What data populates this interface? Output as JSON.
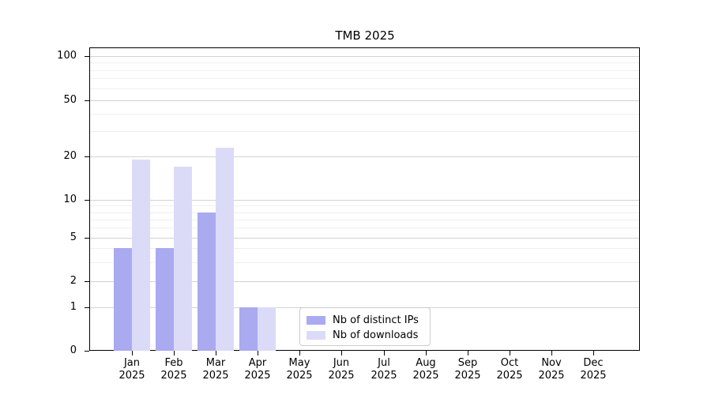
{
  "chart_data": {
    "type": "bar",
    "title": "TMB 2025",
    "categories": [
      {
        "month": "Jan",
        "year": "2025"
      },
      {
        "month": "Feb",
        "year": "2025"
      },
      {
        "month": "Mar",
        "year": "2025"
      },
      {
        "month": "Apr",
        "year": "2025"
      },
      {
        "month": "May",
        "year": "2025"
      },
      {
        "month": "Jun",
        "year": "2025"
      },
      {
        "month": "Jul",
        "year": "2025"
      },
      {
        "month": "Aug",
        "year": "2025"
      },
      {
        "month": "Sep",
        "year": "2025"
      },
      {
        "month": "Oct",
        "year": "2025"
      },
      {
        "month": "Nov",
        "year": "2025"
      },
      {
        "month": "Dec",
        "year": "2025"
      }
    ],
    "series": [
      {
        "name": "Nb of distinct IPs",
        "color": "#aaaaf0",
        "values": [
          4,
          4,
          8,
          1,
          0,
          0,
          0,
          0,
          0,
          0,
          0,
          0
        ]
      },
      {
        "name": "Nb of downloads",
        "color": "#dbdbf8",
        "values": [
          19,
          17,
          23,
          1,
          0,
          0,
          0,
          0,
          0,
          0,
          0,
          0
        ]
      }
    ],
    "y_axis": {
      "scale": "symlog",
      "major_ticks": [
        0,
        1,
        2,
        5,
        10,
        20,
        50,
        100
      ],
      "tick_labels": [
        "0",
        "1",
        "2",
        "5",
        "10",
        "20",
        "50",
        "100"
      ],
      "minor_ticks": [
        3,
        4,
        6,
        7,
        8,
        9,
        30,
        40,
        60,
        70,
        80,
        90
      ],
      "ylim": [
        0,
        110
      ]
    },
    "legend": {
      "position": "bottom-center-inside",
      "entries": [
        "Nb of distinct IPs",
        "Nb of downloads"
      ]
    },
    "grid": true
  },
  "colors": {
    "background": "#ffffff",
    "spine": "#000000",
    "major_grid": "#d3d3d3",
    "minor_grid": "#efefef",
    "legend_border": "#cccccc",
    "text": "#000000"
  }
}
